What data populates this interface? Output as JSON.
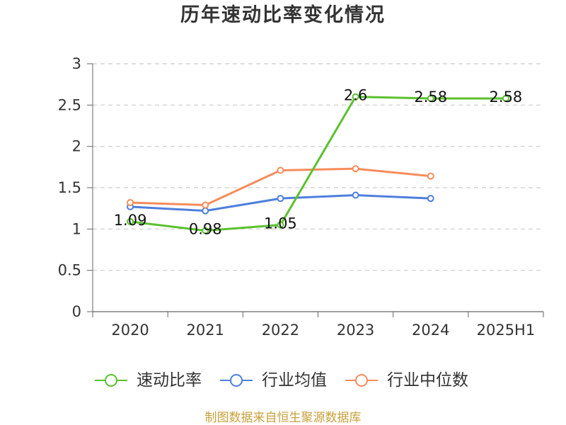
{
  "chart_data": {
    "type": "line",
    "title": "历年速动比率变化情况",
    "xlabel": "",
    "ylabel": "",
    "categories": [
      "2020",
      "2021",
      "2022",
      "2023",
      "2024",
      "2025H1"
    ],
    "ylim": [
      0,
      3
    ],
    "y_ticks": [
      0,
      0.5,
      1,
      1.5,
      2,
      2.5,
      3
    ],
    "grid": true,
    "grid_style": "dashed",
    "legend_position": "bottom",
    "series": [
      {
        "name": "速动比率",
        "color": "#5bc12e",
        "values": [
          1.09,
          0.98,
          1.05,
          2.6,
          2.58,
          2.58
        ],
        "data_labels": true
      },
      {
        "name": "行业均值",
        "color": "#4e7fdc",
        "values": [
          1.27,
          1.22,
          1.37,
          1.41,
          1.37,
          null
        ],
        "data_labels": false
      },
      {
        "name": "行业中位数",
        "color": "#f68c5a",
        "values": [
          1.32,
          1.29,
          1.71,
          1.73,
          1.64,
          null
        ],
        "data_labels": false
      }
    ]
  },
  "source_note": "制图数据来自恒生聚源数据库",
  "colors": {
    "title": "#333333",
    "axis": "#666666",
    "grid": "#cccccc",
    "tick_text": "#333333",
    "data_label": "#111111",
    "source_note": "#c9a03c"
  }
}
